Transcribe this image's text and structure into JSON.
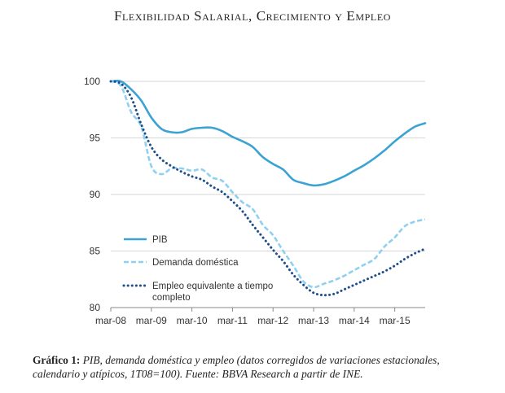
{
  "page_title": "Flexibilidad Salarial, Crecimiento y Empleo",
  "caption": {
    "label": "Gráfico 1:",
    "text": "PIB, demanda doméstica y empleo (datos corregidos de variaciones estacionales, calendario y atípicos, 1T08=100). Fuente: BBVA Research a partir de INE."
  },
  "chart_data": {
    "type": "line",
    "title": "",
    "xlabel": "",
    "ylabel": "",
    "ylim": [
      80,
      100
    ],
    "yticks": [
      80,
      85,
      90,
      95,
      100
    ],
    "xlim": [
      0,
      31
    ],
    "xtick_labels": [
      "mar-08",
      "mar-09",
      "mar-10",
      "mar-11",
      "mar-12",
      "mar-13",
      "mar-14",
      "mar-15"
    ],
    "xtick_positions": [
      0,
      4,
      8,
      12,
      16,
      20,
      24,
      28
    ],
    "grid": true,
    "legend_position": "bottom-left",
    "colors": {
      "pib": "#3aa3d4",
      "demanda": "#8fd0f0",
      "empleo": "#1f4e8c",
      "grid": "#d6d6d6",
      "axis": "#8a8a8a",
      "tick_text": "#333333"
    },
    "series": [
      {
        "name": "PIB",
        "style": "solid",
        "x": [
          0,
          1,
          2,
          3,
          4,
          5,
          6,
          7,
          8,
          9,
          10,
          11,
          12,
          13,
          14,
          15,
          16,
          17,
          18,
          19,
          20,
          21,
          22,
          23,
          24,
          25,
          26,
          27,
          28,
          29,
          30,
          31
        ],
        "values": [
          100,
          100,
          99.3,
          98.3,
          96.8,
          95.8,
          95.5,
          95.5,
          95.8,
          95.9,
          95.9,
          95.6,
          95.1,
          94.7,
          94.2,
          93.3,
          92.7,
          92.2,
          91.3,
          91.0,
          90.8,
          90.9,
          91.2,
          91.6,
          92.1,
          92.6,
          93.2,
          93.9,
          94.7,
          95.4,
          96.0,
          96.3
        ]
      },
      {
        "name": "Demanda doméstica",
        "style": "dashed",
        "x": [
          0,
          1,
          2,
          3,
          4,
          5,
          6,
          7,
          8,
          9,
          10,
          11,
          12,
          13,
          14,
          15,
          16,
          17,
          18,
          19,
          20,
          21,
          22,
          23,
          24,
          25,
          26,
          27,
          28,
          29,
          30,
          31
        ],
        "values": [
          100,
          99.6,
          97.3,
          96.0,
          92.5,
          91.8,
          92.3,
          92.3,
          92.1,
          92.2,
          91.5,
          91.2,
          90.2,
          89.3,
          88.7,
          87.3,
          86.4,
          85.0,
          83.7,
          82.3,
          81.8,
          82.1,
          82.4,
          82.8,
          83.3,
          83.8,
          84.3,
          85.4,
          86.2,
          87.2,
          87.6,
          87.8
        ]
      },
      {
        "name": "Empleo equivalente a tiempo completo",
        "style": "dotted",
        "x": [
          0,
          1,
          2,
          3,
          4,
          5,
          6,
          7,
          8,
          9,
          10,
          11,
          12,
          13,
          14,
          15,
          16,
          17,
          18,
          19,
          20,
          21,
          22,
          23,
          24,
          25,
          26,
          27,
          28,
          29,
          30,
          31
        ],
        "values": [
          100,
          99.8,
          98.6,
          96.2,
          94.2,
          93.1,
          92.5,
          92.0,
          91.6,
          91.3,
          90.7,
          90.2,
          89.4,
          88.5,
          87.3,
          86.2,
          85.1,
          84.1,
          82.9,
          82.0,
          81.3,
          81.1,
          81.2,
          81.6,
          82.0,
          82.4,
          82.8,
          83.2,
          83.7,
          84.3,
          84.8,
          85.2
        ]
      }
    ],
    "legend": [
      {
        "label": "PIB"
      },
      {
        "label": "Demanda doméstica"
      },
      {
        "label_line1": "Empleo equivalente a tiempo",
        "label_line2": "completo"
      }
    ]
  }
}
